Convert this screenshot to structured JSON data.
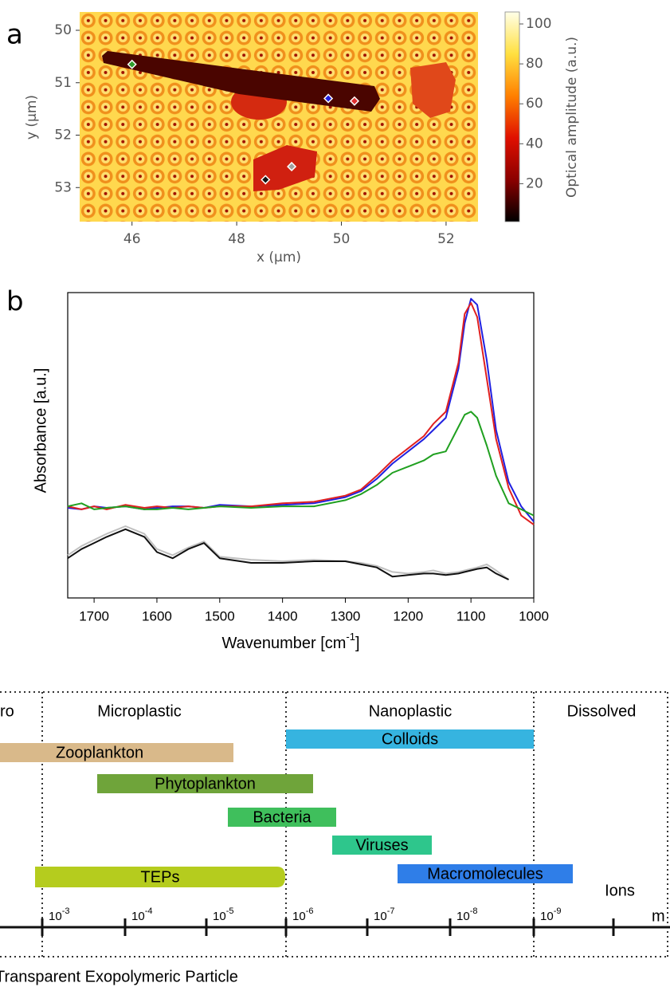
{
  "chart_data": [
    {
      "type": "heatmap",
      "label": "a",
      "xlabel": "x (µm)",
      "ylabel": "y (µm)",
      "xlim": [
        45.0,
        52.61
      ],
      "ylim": [
        49.65,
        53.65
      ],
      "y_inverted": true,
      "xticks": [
        46,
        48,
        50,
        52
      ],
      "yticks": [
        50,
        51,
        52,
        53
      ],
      "colorbar": {
        "label": "Optical amplitude (a.u.)",
        "lim": [
          1,
          106
        ],
        "ticks": [
          20,
          40,
          60,
          80,
          100
        ],
        "colors": [
          "#000000",
          "#8b0000",
          "#e01000",
          "#ff8000",
          "#ffe040",
          "#ffffe8"
        ]
      },
      "markers": {
        "x": [
          46.0,
          49.75,
          50.25,
          49.05,
          48.55
        ],
        "y": [
          50.65,
          51.3,
          51.35,
          52.6,
          52.85
        ],
        "colors": [
          "#2e9e2e",
          "#2020e0",
          "#e03030",
          "#a0a0a0",
          "#111111"
        ]
      }
    },
    {
      "type": "line",
      "label": "b",
      "ylabel": "Absorbance [a.u.]",
      "xlabel": {
        "text": "Wavenumber [cm",
        "sup": "-1",
        "tail": "]"
      },
      "xlim": [
        1742,
        1000
      ],
      "ylim": [
        0,
        1
      ],
      "xticks": [
        1700,
        1600,
        1500,
        1400,
        1300,
        1200,
        1100,
        1000
      ],
      "x": [
        1742,
        1720,
        1700,
        1680,
        1650,
        1620,
        1600,
        1575,
        1550,
        1525,
        1500,
        1450,
        1400,
        1350,
        1300,
        1275,
        1250,
        1225,
        1200,
        1175,
        1160,
        1140,
        1120,
        1110,
        1100,
        1090,
        1075,
        1060,
        1040,
        1020,
        1000
      ],
      "series": [
        {
          "color": "#2020e0",
          "values": [
            0.295,
            0.29,
            0.3,
            0.295,
            0.3,
            0.29,
            0.295,
            0.3,
            0.3,
            0.295,
            0.305,
            0.3,
            0.305,
            0.31,
            0.33,
            0.35,
            0.39,
            0.44,
            0.48,
            0.52,
            0.55,
            0.59,
            0.75,
            0.9,
            0.98,
            0.96,
            0.78,
            0.55,
            0.38,
            0.3,
            0.25
          ]
        },
        {
          "color": "#e02020",
          "values": [
            0.3,
            0.29,
            0.3,
            0.29,
            0.305,
            0.295,
            0.3,
            0.295,
            0.3,
            0.295,
            0.3,
            0.3,
            0.31,
            0.315,
            0.335,
            0.355,
            0.4,
            0.45,
            0.49,
            0.53,
            0.57,
            0.61,
            0.77,
            0.93,
            0.966,
            0.92,
            0.72,
            0.52,
            0.36,
            0.27,
            0.24
          ]
        },
        {
          "color": "#20a020",
          "values": [
            0.3,
            0.31,
            0.29,
            0.295,
            0.3,
            0.29,
            0.29,
            0.295,
            0.29,
            0.295,
            0.3,
            0.295,
            0.3,
            0.3,
            0.32,
            0.34,
            0.37,
            0.41,
            0.43,
            0.45,
            0.47,
            0.48,
            0.56,
            0.6,
            0.61,
            0.59,
            0.5,
            0.4,
            0.31,
            0.29,
            0.27
          ]
        },
        {
          "color": "#c0c0c0",
          "values": [
            0.14,
            0.17,
            0.19,
            0.21,
            0.235,
            0.21,
            0.16,
            0.14,
            0.165,
            0.185,
            0.135,
            0.125,
            0.12,
            0.125,
            0.12,
            0.115,
            0.105,
            0.085,
            0.08,
            0.085,
            0.09,
            0.08,
            0.085,
            0.09,
            0.095,
            0.1,
            0.11,
            0.09,
            0.06,
            null,
            null
          ]
        },
        {
          "color": "#111111",
          "values": [
            0.13,
            0.16,
            0.18,
            0.2,
            0.225,
            0.2,
            0.15,
            0.13,
            0.16,
            0.18,
            0.13,
            0.115,
            0.115,
            0.12,
            0.12,
            0.11,
            0.1,
            0.07,
            0.075,
            0.08,
            0.08,
            0.075,
            0.08,
            0.085,
            0.09,
            0.095,
            0.1,
            0.08,
            0.06,
            null,
            null
          ]
        }
      ]
    }
  ],
  "diagram": {
    "regions": [
      "ro",
      "Microplastic",
      "Nanoplastic",
      "Dissolved"
    ],
    "bars": [
      {
        "label": "Zooplankton",
        "color": "#d9b98a"
      },
      {
        "label": "Colloids",
        "color": "#36b4e0"
      },
      {
        "label": "Phytoplankton",
        "color": "#6fa43a"
      },
      {
        "label": "Bacteria",
        "color": "#3fbf5c"
      },
      {
        "label": "Viruses",
        "color": "#2ec68c"
      },
      {
        "label": "TEPs",
        "color": "#b5cc1e"
      },
      {
        "label": "Macromolecules",
        "color": "#2f7ee8"
      }
    ],
    "ions": "Ions",
    "scale": [
      {
        "base": "10",
        "exp": "-3"
      },
      {
        "base": "10",
        "exp": "-4"
      },
      {
        "base": "10",
        "exp": "-5"
      },
      {
        "base": "10",
        "exp": "-6"
      },
      {
        "base": "10",
        "exp": "-7"
      },
      {
        "base": "10",
        "exp": "-8"
      },
      {
        "base": "10",
        "exp": "-9"
      }
    ],
    "unit": "m",
    "footnote": "Transparent Exopolymeric Particle"
  }
}
